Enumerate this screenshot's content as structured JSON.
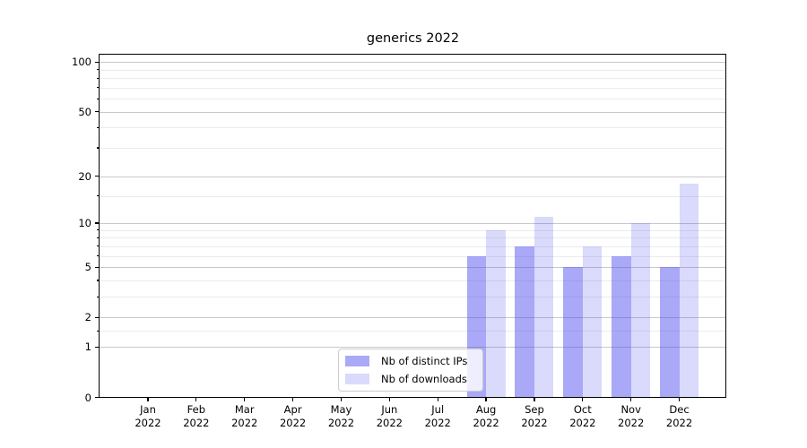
{
  "figure": {
    "background": "#ffffff",
    "title": "generics 2022"
  },
  "chart_data": {
    "type": "bar",
    "title": "generics 2022",
    "categories": [
      "Jan 2022",
      "Feb 2022",
      "Mar 2022",
      "Apr 2022",
      "May 2022",
      "Jun 2022",
      "Jul 2022",
      "Aug 2022",
      "Sep 2022",
      "Oct 2022",
      "Nov 2022",
      "Dec 2022"
    ],
    "series": [
      {
        "name": "Nb of distinct IPs",
        "color_hex": "#4444ee",
        "alpha": 0.46,
        "fill": "rgba(68,68,238,0.46)",
        "values": [
          0,
          0,
          0,
          0,
          0,
          0,
          0,
          6,
          7,
          5,
          6,
          5
        ]
      },
      {
        "name": "Nb of downloads",
        "color_hex": "#4444ee",
        "alpha": 0.2,
        "fill": "rgba(68,68,238,0.20)",
        "values": [
          0,
          0,
          0,
          0,
          0,
          0,
          0,
          9,
          11,
          7,
          10,
          18
        ]
      }
    ],
    "xlabel": "",
    "ylabel": "",
    "yscale": "log1p",
    "ylim": [
      0,
      112
    ],
    "yticks_major": [
      100,
      50,
      20,
      10,
      5,
      2,
      1,
      0
    ],
    "yticks_minor": [
      1.5,
      3,
      4,
      6,
      7,
      8,
      9,
      15,
      30,
      40,
      60,
      70,
      80,
      90
    ],
    "grid": true,
    "grid_major_color": "#c9c9c9",
    "grid_minor_color": "#ebebeb",
    "legend_position": "lower center",
    "legend": {
      "items": [
        "Nb of distinct IPs",
        "Nb of downloads"
      ]
    }
  }
}
